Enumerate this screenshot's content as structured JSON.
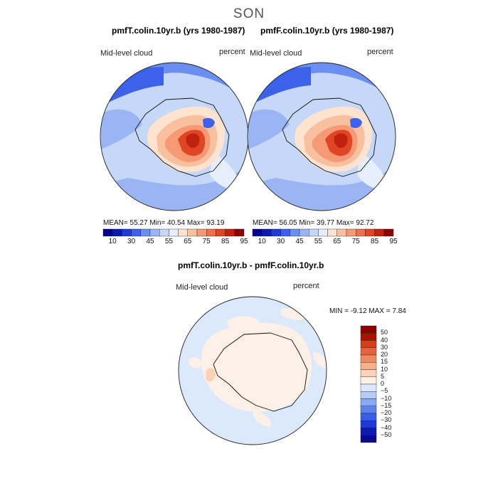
{
  "figure": {
    "season": "SON",
    "colorbar_ticks": [
      "10",
      "30",
      "45",
      "55",
      "65",
      "75",
      "85",
      "95"
    ],
    "abs_colors": [
      "#00008b",
      "#0a1aaa",
      "#1f3cd4",
      "#3b62e8",
      "#6b8ff0",
      "#9bb5f4",
      "#c6d8f8",
      "#e6eefc",
      "#fde3d0",
      "#f9c0a0",
      "#f59a75",
      "#ee6f4c",
      "#e04526",
      "#c0220e",
      "#8b0000"
    ],
    "diff_colors": [
      "#0a0a8c",
      "#0c1ab4",
      "#1e3ad6",
      "#3a5ee8",
      "#5c82f0",
      "#8aa8f4",
      "#b6cbf8",
      "#dce8fb",
      "#fdf0e6",
      "#fad2b8",
      "#f6b08c",
      "#f08a62",
      "#e8623c",
      "#d83a1c",
      "#a81404",
      "#8b0000"
    ],
    "diff_ticks": [
      "50",
      "40",
      "30",
      "20",
      "15",
      "10",
      "5",
      "0",
      "−5",
      "−10",
      "−15",
      "−20",
      "−30",
      "−40",
      "−50"
    ]
  },
  "panels": [
    {
      "title": "pmfT.colin.10yr.b (yrs 1980-1987)",
      "field": "Mid-level cloud",
      "units": "percent",
      "stats": "MEAN=   55.27   Min=   40.54   Max=   93.19"
    },
    {
      "title": "pmfF.colin.10yr.b (yrs 1980-1987)",
      "field": "Mid-level cloud",
      "units": "percent",
      "stats": "MEAN=   56.05   Min=   39.77   Max=   92.72"
    }
  ],
  "diff_panel": {
    "title": "pmfT.colin.10yr.b - pmfF.colin.10yr.b",
    "field": "Mid-level cloud",
    "units": "percent",
    "minmax": "MIN =    -9.12  MAX =     7.84"
  },
  "map": {
    "projection": "south-polar-stereographic",
    "mean_T": 55.27,
    "min_T": 40.54,
    "max_T": 93.19,
    "mean_F": 56.05,
    "min_F": 39.77,
    "max_F": 92.72,
    "diff_min": -9.12,
    "diff_max": 7.84
  }
}
